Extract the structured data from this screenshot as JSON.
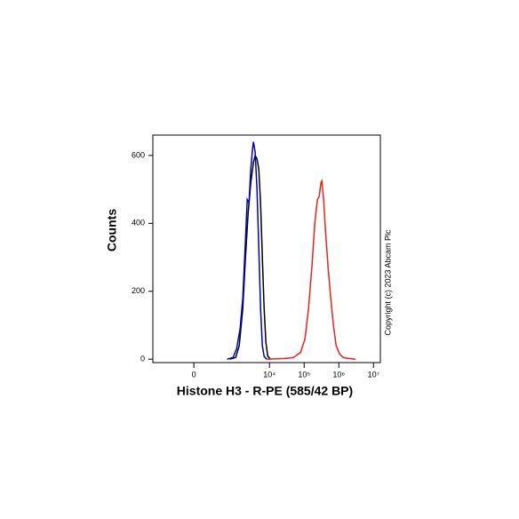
{
  "chart_data": {
    "type": "line",
    "xlabel": "Histone H3 - R-PE  (585/42 BP)",
    "ylabel": "Counts",
    "annotation": "Copyright (c) 2023 Abcam Plc",
    "xscale": "asinh",
    "xlim": [
      -1000,
      15800000
    ],
    "xticks": [
      0,
      {
        "value": 10000,
        "label": "10⁴"
      },
      {
        "value": 100000,
        "label": "10⁵"
      },
      {
        "value": 1000000,
        "label": "10⁶"
      },
      {
        "value": 10000000,
        "label": "10⁷"
      }
    ],
    "ylim": [
      -10,
      660
    ],
    "yticks": [
      0,
      200,
      400,
      600
    ],
    "series": [
      {
        "color": "#000000",
        "x": [
          700,
          1058,
          1340,
          1700,
          2030,
          2420,
          2890,
          3450,
          3870,
          4370,
          4920,
          5530,
          6220,
          7010,
          7880,
          8860,
          10580
        ],
        "values": [
          0,
          5,
          40,
          150,
          300,
          430,
          520,
          580,
          600,
          590,
          560,
          460,
          300,
          150,
          50,
          10,
          0
        ]
      },
      {
        "color": "#0000cc",
        "x": [
          590,
          890,
          1120,
          1420,
          1700,
          2030,
          2280,
          2570,
          2890,
          3250,
          3450,
          3870,
          4370,
          4920,
          5530,
          6220,
          7010,
          8370
        ],
        "values": [
          0,
          5,
          30,
          90,
          180,
          350,
          470,
          460,
          560,
          620,
          640,
          610,
          500,
          330,
          150,
          40,
          8,
          0
        ]
      },
      {
        "color": "#e8231f",
        "x": [
          8370,
          27200,
          49200,
          78800,
          105800,
          134100,
          169600,
          202600,
          241800,
          272000,
          306600,
          324700,
          366000,
          411600,
          491500,
          586900,
          700700,
          836700,
          1058000,
          1341000,
          1912000,
          3066000
        ],
        "values": [
          0,
          2,
          5,
          20,
          60,
          150,
          280,
          400,
          470,
          480,
          520,
          525,
          470,
          380,
          270,
          180,
          100,
          40,
          15,
          5,
          2,
          0
        ]
      }
    ]
  }
}
